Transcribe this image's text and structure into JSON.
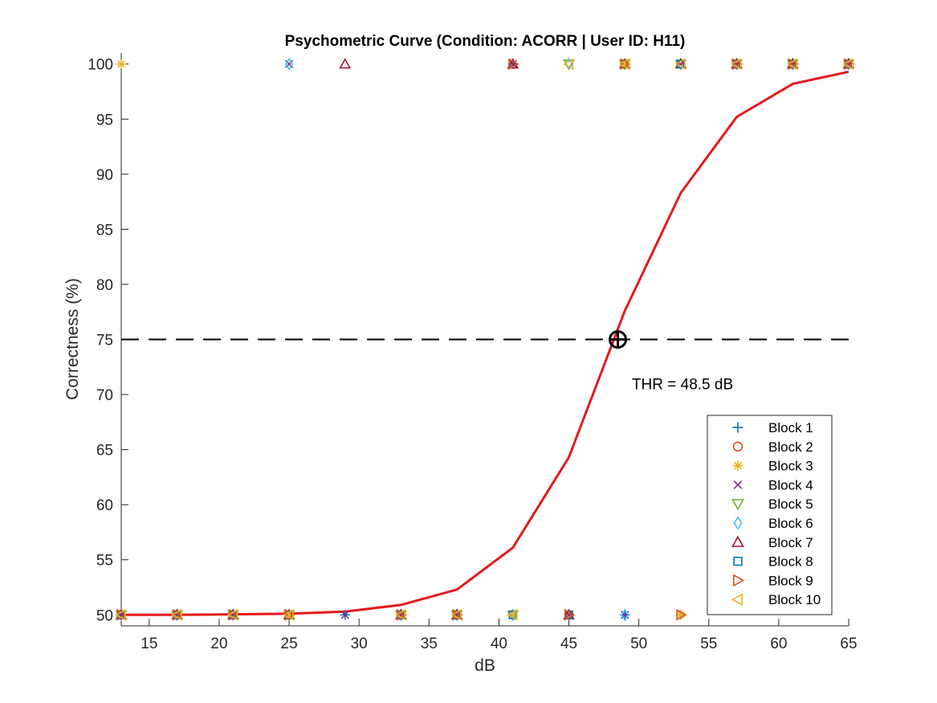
{
  "chart_data": {
    "type": "scatter",
    "title": "Psychometric Curve (Condition: ACORR | User ID: H11)",
    "xlabel": "dB",
    "ylabel": "Correctness (%)",
    "xlim": [
      13,
      65
    ],
    "ylim": [
      49,
      101
    ],
    "xticks": [
      15,
      20,
      25,
      30,
      35,
      40,
      45,
      50,
      55,
      60,
      65
    ],
    "yticks": [
      50,
      55,
      60,
      65,
      70,
      75,
      80,
      85,
      90,
      95,
      100
    ],
    "grid": false,
    "legend_position": "bottom-right",
    "series": [
      {
        "name": "Block 1",
        "marker": "plus",
        "color": "#0072BD",
        "points": [
          [
            13,
            50
          ],
          [
            17,
            50
          ],
          [
            21,
            50
          ],
          [
            25,
            50
          ],
          [
            29,
            50
          ],
          [
            33,
            50
          ],
          [
            37,
            50
          ],
          [
            41,
            100
          ],
          [
            45,
            50
          ],
          [
            49,
            50
          ],
          [
            53,
            50
          ],
          [
            57,
            100
          ],
          [
            61,
            100
          ],
          [
            65,
            100
          ]
        ]
      },
      {
        "name": "Block 2",
        "marker": "circle",
        "color": "#D95319",
        "points": [
          [
            13,
            50
          ],
          [
            17,
            50
          ],
          [
            21,
            50
          ],
          [
            25,
            50
          ],
          [
            33,
            50
          ],
          [
            37,
            50
          ],
          [
            41,
            50
          ],
          [
            45,
            50
          ],
          [
            49,
            100
          ],
          [
            53,
            100
          ],
          [
            57,
            100
          ],
          [
            61,
            100
          ],
          [
            65,
            100
          ]
        ]
      },
      {
        "name": "Block 3",
        "marker": "asterisk",
        "color": "#EDB120",
        "points": [
          [
            13,
            100
          ],
          [
            17,
            50
          ],
          [
            21,
            50
          ],
          [
            25,
            50
          ],
          [
            33,
            50
          ],
          [
            37,
            50
          ],
          [
            41,
            50
          ],
          [
            45,
            50
          ],
          [
            49,
            100
          ],
          [
            53,
            50
          ],
          [
            57,
            100
          ],
          [
            61,
            100
          ],
          [
            65,
            100
          ]
        ]
      },
      {
        "name": "Block 4",
        "marker": "x",
        "color": "#7E2F8E",
        "points": [
          [
            13,
            50
          ],
          [
            17,
            50
          ],
          [
            21,
            50
          ],
          [
            25,
            100
          ],
          [
            29,
            50
          ],
          [
            33,
            50
          ],
          [
            37,
            50
          ],
          [
            41,
            100
          ],
          [
            45,
            50
          ],
          [
            49,
            50
          ],
          [
            53,
            100
          ],
          [
            57,
            100
          ],
          [
            61,
            100
          ],
          [
            65,
            100
          ]
        ]
      },
      {
        "name": "Block 5",
        "marker": "triangle-down",
        "color": "#77AC30",
        "points": [
          [
            13,
            50
          ],
          [
            17,
            50
          ],
          [
            21,
            50
          ],
          [
            25,
            50
          ],
          [
            33,
            50
          ],
          [
            37,
            50
          ],
          [
            41,
            50
          ],
          [
            45,
            100
          ],
          [
            49,
            100
          ],
          [
            53,
            100
          ],
          [
            57,
            100
          ],
          [
            61,
            100
          ],
          [
            65,
            100
          ]
        ]
      },
      {
        "name": "Block 6",
        "marker": "diamond",
        "color": "#4DBEEE",
        "points": [
          [
            13,
            50
          ],
          [
            17,
            50
          ],
          [
            21,
            50
          ],
          [
            25,
            100
          ],
          [
            33,
            50
          ],
          [
            37,
            50
          ],
          [
            41,
            50
          ],
          [
            45,
            100
          ],
          [
            49,
            50
          ],
          [
            53,
            100
          ],
          [
            57,
            100
          ],
          [
            61,
            100
          ],
          [
            65,
            100
          ]
        ]
      },
      {
        "name": "Block 7",
        "marker": "triangle-up",
        "color": "#A2142F",
        "points": [
          [
            13,
            50
          ],
          [
            17,
            50
          ],
          [
            21,
            50
          ],
          [
            25,
            50
          ],
          [
            29,
            100
          ],
          [
            33,
            50
          ],
          [
            37,
            50
          ],
          [
            41,
            100
          ],
          [
            45,
            50
          ],
          [
            49,
            100
          ],
          [
            53,
            100
          ],
          [
            57,
            100
          ],
          [
            61,
            100
          ],
          [
            65,
            100
          ]
        ]
      },
      {
        "name": "Block 8",
        "marker": "square",
        "color": "#0072BD",
        "points": [
          [
            13,
            50
          ],
          [
            17,
            50
          ],
          [
            21,
            50
          ],
          [
            25,
            50
          ],
          [
            33,
            50
          ],
          [
            37,
            50
          ],
          [
            41,
            50
          ],
          [
            45,
            50
          ],
          [
            49,
            100
          ],
          [
            53,
            100
          ],
          [
            57,
            100
          ],
          [
            61,
            100
          ],
          [
            65,
            100
          ]
        ]
      },
      {
        "name": "Block 9",
        "marker": "triangle-right",
        "color": "#D95319",
        "points": [
          [
            13,
            50
          ],
          [
            17,
            50
          ],
          [
            21,
            50
          ],
          [
            25,
            50
          ],
          [
            33,
            50
          ],
          [
            37,
            50
          ],
          [
            41,
            100
          ],
          [
            45,
            50
          ],
          [
            49,
            100
          ],
          [
            53,
            50
          ],
          [
            57,
            100
          ],
          [
            61,
            100
          ],
          [
            65,
            100
          ]
        ]
      },
      {
        "name": "Block 10",
        "marker": "triangle-left",
        "color": "#EDB120",
        "points": [
          [
            13,
            50
          ],
          [
            17,
            50
          ],
          [
            21,
            50
          ],
          [
            25,
            50
          ],
          [
            33,
            50
          ],
          [
            37,
            50
          ],
          [
            41,
            50
          ],
          [
            45,
            100
          ],
          [
            49,
            100
          ],
          [
            53,
            100
          ],
          [
            57,
            100
          ],
          [
            61,
            100
          ],
          [
            65,
            100
          ]
        ]
      }
    ],
    "fit_curve": {
      "color": "#E41A1C",
      "x": [
        13,
        17,
        21,
        25,
        29,
        33,
        37,
        41,
        45,
        49,
        53,
        57,
        61,
        65
      ],
      "y": [
        50,
        50,
        50.05,
        50.1,
        50.3,
        50.9,
        52.3,
        56.1,
        64.3,
        77.6,
        88.3,
        95.2,
        98.2,
        99.3
      ]
    },
    "threshold_line": {
      "y": 75,
      "color": "#000000"
    },
    "threshold_point": {
      "x": 48.5,
      "y": 75
    },
    "annotation": {
      "text": "THR = 48.5 dB",
      "x": 49.5,
      "y": 71
    }
  }
}
